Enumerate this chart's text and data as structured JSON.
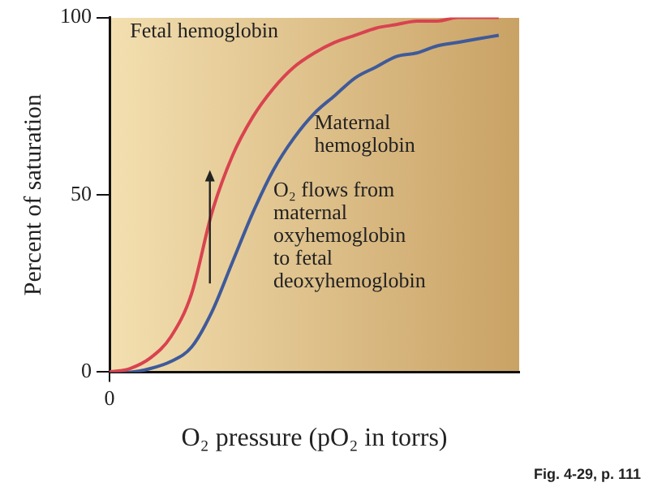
{
  "chart_data": {
    "type": "line",
    "xlabel": "O₂ pressure (pO₂ in torrs)",
    "ylabel": "Percent of saturation",
    "categories": [
      "0",
      null,
      null,
      null,
      null,
      null,
      null,
      null,
      null,
      null,
      null,
      null,
      null,
      null,
      null,
      null,
      null,
      null,
      null,
      null,
      null
    ],
    "series": [
      {
        "name": "Fetal hemoglobin",
        "color": "#d9434f",
        "values": [
          0,
          1,
          4,
          10,
          22,
          45,
          61,
          72,
          80,
          86,
          90,
          93,
          95,
          97,
          98,
          99,
          99,
          100,
          100,
          100,
          null
        ]
      },
      {
        "name": "Maternal hemoglobin",
        "color": "#3f5a9a",
        "values": [
          0,
          0,
          1,
          3,
          7,
          17,
          31,
          45,
          57,
          66,
          73,
          78,
          83,
          86,
          89,
          90,
          92,
          93,
          94,
          95,
          null
        ]
      }
    ],
    "ylim": [
      0,
      100
    ],
    "yticks": [
      0,
      50,
      100
    ],
    "grid": false,
    "legend": false,
    "marker": "none",
    "line_style": "solid",
    "annotations": [
      "O₂ flows from maternal oxyhemoglobin to fetal deoxyhemoglobin",
      "Fig. 4-29, p. 111"
    ]
  }
}
